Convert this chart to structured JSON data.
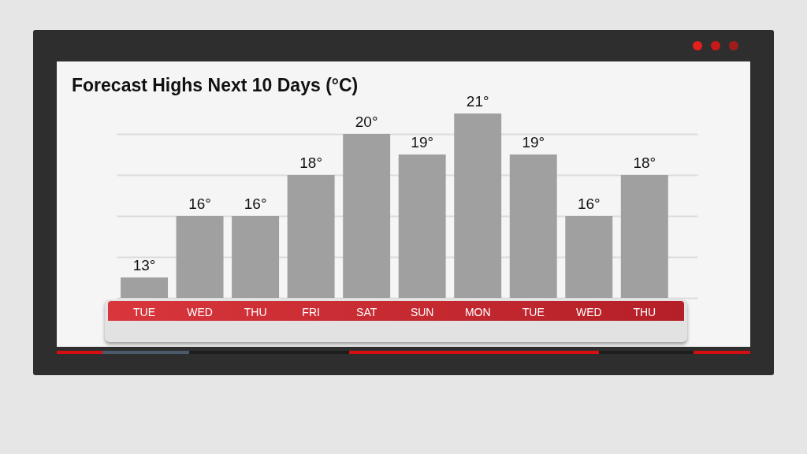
{
  "chart_data": {
    "type": "bar",
    "title": "Forecast Highs Next 10 Days (°C)",
    "categories": [
      "TUE",
      "WED",
      "THU",
      "FRI",
      "SAT",
      "SUN",
      "MON",
      "TUE",
      "WED",
      "THU"
    ],
    "values": [
      13,
      16,
      16,
      18,
      20,
      19,
      21,
      19,
      16,
      18
    ],
    "value_labels": [
      "13°",
      "16°",
      "16°",
      "18°",
      "20°",
      "19°",
      "21°",
      "19°",
      "16°",
      "18°"
    ],
    "color": "#a0a0a0",
    "ylim": [
      12,
      21
    ],
    "yticks": [
      12,
      14,
      16,
      18,
      20
    ],
    "grid": "y",
    "tick_labels": "x"
  }
}
